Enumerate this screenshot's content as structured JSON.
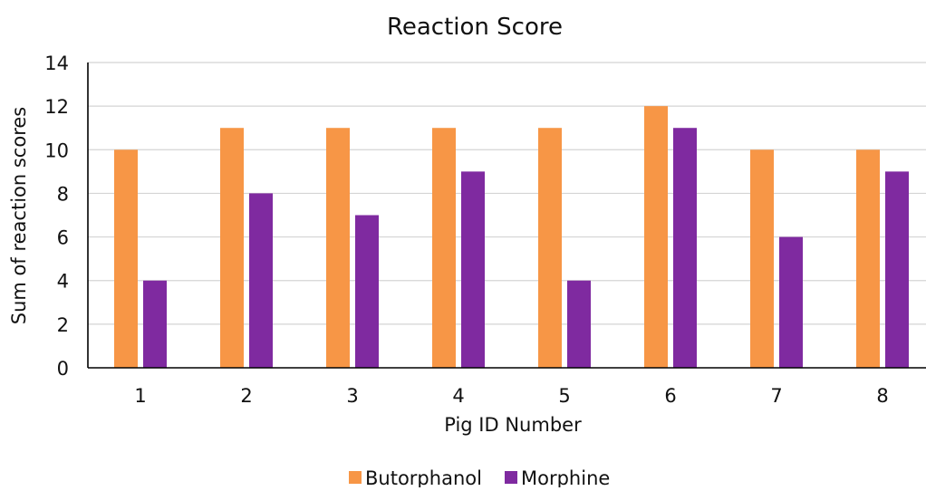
{
  "chart_data": {
    "type": "bar",
    "title": "Reaction Score",
    "xlabel": "Pig ID Number",
    "ylabel": "Sum of reaction scores",
    "categories": [
      "1",
      "2",
      "3",
      "4",
      "5",
      "6",
      "7",
      "8"
    ],
    "series": [
      {
        "name": "Butorphanol",
        "color": "#F79646",
        "values": [
          10,
          11,
          11,
          11,
          11,
          12,
          10,
          10
        ]
      },
      {
        "name": "Morphine",
        "color": "#7F2AA0",
        "values": [
          4,
          8,
          7,
          9,
          4,
          11,
          6,
          9
        ]
      }
    ],
    "ylim": [
      0,
      14
    ],
    "yticks": [
      0,
      2,
      4,
      6,
      8,
      10,
      12,
      14
    ],
    "grid": true,
    "legend": "bottom"
  }
}
